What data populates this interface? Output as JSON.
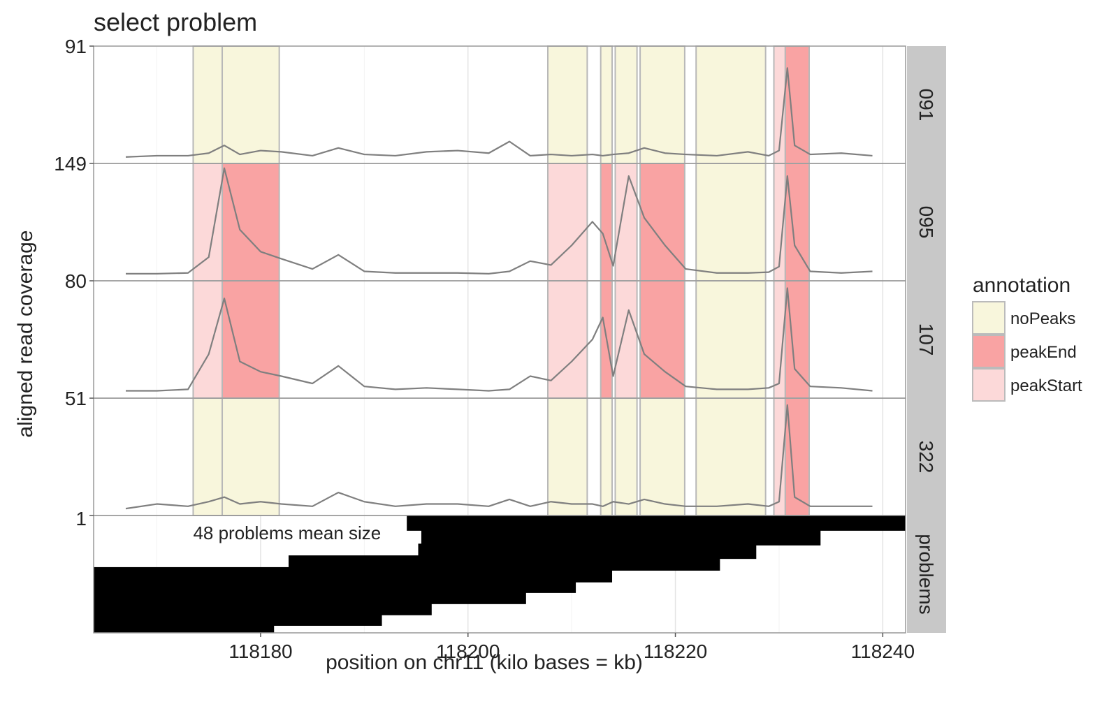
{
  "chart_data": {
    "type": "line",
    "title": "select problem",
    "xlabel": "position on chr11 (kilo bases = kb)",
    "ylabel": "aligned read coverage",
    "xlim": [
      118163.9,
      118242.2
    ],
    "xticks": [
      118180,
      118200,
      118220,
      118240
    ],
    "xminor": [
      118170,
      118190,
      118210,
      118230
    ],
    "grid": true,
    "line_color": "#7f7f7f",
    "x": [
      118167,
      118170,
      118173,
      118175,
      118176.5,
      118178,
      118180,
      118182,
      118185,
      118187.5,
      118190,
      118193,
      118196,
      118199,
      118202,
      118204,
      118206,
      118208,
      118210,
      118212,
      118213,
      118214,
      118215.5,
      118217,
      118219,
      118221,
      118224,
      118227,
      118229,
      118230,
      118230.8,
      118231.5,
      118233,
      118236,
      118239
    ],
    "regions": [
      {
        "xmin": 118173.5,
        "xmax": 118176.3
      },
      {
        "xmin": 118176.3,
        "xmax": 118181.8
      },
      {
        "xmin": 118207.7,
        "xmax": 118211.5
      },
      {
        "xmin": 118212.8,
        "xmax": 118213.9
      },
      {
        "xmin": 118214.2,
        "xmax": 118216.3
      },
      {
        "xmin": 118216.6,
        "xmax": 118220.9
      },
      {
        "xmin": 118222.0,
        "xmax": 118228.7
      },
      {
        "xmin": 118229.5,
        "xmax": 118230.6
      },
      {
        "xmin": 118230.6,
        "xmax": 118232.9
      }
    ],
    "legend": {
      "title": "annotation",
      "items": [
        {
          "name": "noPeaks",
          "color": "#f8f6dc"
        },
        {
          "name": "peakEnd",
          "color": "#f9a3a3"
        },
        {
          "name": "peakStart",
          "color": "#fcd9d9"
        }
      ]
    },
    "facets": [
      {
        "label": "091",
        "ylim": [
          0,
          91
        ],
        "yticks": [
          91
        ],
        "values": [
          5,
          6,
          6,
          8,
          14,
          7,
          10,
          9,
          6,
          12,
          7,
          6,
          9,
          10,
          8,
          17,
          6,
          7,
          6,
          7,
          6,
          7,
          8,
          12,
          8,
          7,
          6,
          9,
          6,
          10,
          74,
          14,
          7,
          8,
          6
        ],
        "annotations": [
          "noPeaks",
          "noPeaks",
          "noPeaks",
          "noPeaks",
          "noPeaks",
          "noPeaks",
          "noPeaks",
          "peakStart",
          "peakEnd"
        ]
      },
      {
        "label": "095",
        "ylim": [
          0,
          149
        ],
        "yticks": [
          149
        ],
        "values": [
          9,
          9,
          10,
          30,
          143,
          65,
          37,
          28,
          15,
          33,
          12,
          10,
          10,
          10,
          9,
          12,
          25,
          20,
          45,
          75,
          60,
          19,
          133,
          80,
          45,
          15,
          10,
          10,
          11,
          18,
          133,
          45,
          12,
          10,
          12
        ],
        "annotations": [
          "peakStart",
          "peakEnd",
          "peakStart",
          "peakEnd",
          "peakStart",
          "peakEnd",
          "noPeaks",
          "peakStart",
          "peakEnd"
        ]
      },
      {
        "label": "107",
        "ylim": [
          0,
          80
        ],
        "yticks": [
          80
        ],
        "values": [
          5,
          5,
          6,
          30,
          68,
          25,
          18,
          15,
          10,
          22,
          8,
          6,
          7,
          6,
          5,
          6,
          15,
          12,
          25,
          40,
          55,
          15,
          60,
          30,
          18,
          8,
          6,
          6,
          7,
          10,
          75,
          20,
          8,
          7,
          5
        ],
        "annotations": [
          "peakStart",
          "peakEnd",
          "peakStart",
          "peakEnd",
          "peakStart",
          "peakEnd",
          "noPeaks",
          "peakStart",
          "peakEnd"
        ]
      },
      {
        "label": "322",
        "ylim": [
          0,
          51
        ],
        "yticks": [
          51
        ],
        "values": [
          3,
          5,
          4,
          6,
          8,
          5,
          6,
          5,
          4,
          10,
          6,
          4,
          5,
          5,
          4,
          7,
          4,
          6,
          5,
          5,
          4,
          6,
          5,
          7,
          5,
          4,
          4,
          5,
          4,
          6,
          48,
          8,
          4,
          4,
          4
        ],
        "annotations": [
          "noPeaks",
          "noPeaks",
          "noPeaks",
          "noPeaks",
          "noPeaks",
          "noPeaks",
          "noPeaks",
          "peakStart",
          "peakEnd"
        ]
      }
    ],
    "problems": {
      "label": "problems",
      "ylim": [
        0,
        1
      ],
      "yticks": [
        1
      ],
      "text": "48 problems mean size",
      "bars": [
        {
          "start": 118194.1,
          "end": 118242.2,
          "top": 1.0
        },
        {
          "start": 118195.5,
          "end": 118234.0,
          "top": 0.875
        },
        {
          "start": 118195.2,
          "end": 118227.8,
          "top": 0.76
        },
        {
          "start": 118182.7,
          "end": 118224.3,
          "top": 0.66
        },
        {
          "start": 118163.9,
          "end": 118213.9,
          "top": 0.56
        },
        {
          "start": 118163.9,
          "end": 118210.4,
          "top": 0.47
        },
        {
          "start": 118163.9,
          "end": 118205.6,
          "top": 0.375
        },
        {
          "start": 118163.9,
          "end": 118196.5,
          "top": 0.28
        },
        {
          "start": 118163.9,
          "end": 118191.7,
          "top": 0.19
        },
        {
          "start": 118163.9,
          "end": 118181.3,
          "top": 0.094
        }
      ]
    }
  }
}
